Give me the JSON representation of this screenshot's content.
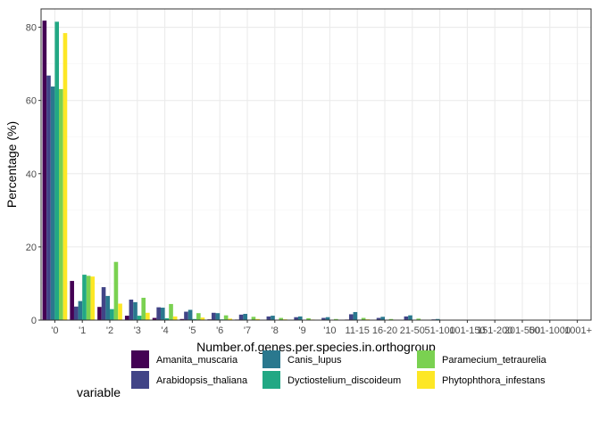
{
  "chart_data": {
    "type": "bar",
    "xlabel": "Number.of.genes.per.species.in.orthogroup",
    "ylabel": "Percentage (%)",
    "ylim": [
      0,
      85
    ],
    "yticks": [
      0,
      20,
      40,
      60,
      80
    ],
    "grid": true,
    "legend_title": "variable",
    "legend_position": "bottom",
    "categories": [
      "'0",
      "'1",
      "'2",
      "'3",
      "'4",
      "'5",
      "'6",
      "'7",
      "'8",
      "'9",
      "'10",
      "11-15",
      "16-20",
      "21-50",
      "51-100",
      "101-150",
      "151-200",
      "201-500",
      "501-1000",
      "'1001+"
    ],
    "series": [
      {
        "name": "Amanita_muscaria",
        "color": "#440154",
        "values": [
          81.8,
          10.7,
          3.6,
          1.2,
          0.6,
          0.3,
          0.2,
          0.15,
          0.1,
          0.08,
          0.06,
          0.15,
          0.05,
          0.05,
          0.01,
          0,
          0,
          0,
          0,
          0
        ]
      },
      {
        "name": "Arabidopsis_thaliana",
        "color": "#414487",
        "values": [
          66.8,
          3.7,
          9.0,
          5.6,
          3.5,
          2.3,
          2.0,
          1.5,
          1.0,
          0.8,
          0.6,
          1.6,
          0.6,
          1.0,
          0.2,
          0.05,
          0.02,
          0.02,
          0,
          0
        ]
      },
      {
        "name": "Canis_lupus",
        "color": "#2A788E",
        "values": [
          63.8,
          5.2,
          6.6,
          4.9,
          3.4,
          2.8,
          1.9,
          1.7,
          1.2,
          1.0,
          0.8,
          2.2,
          0.9,
          1.3,
          0.3,
          0.05,
          0.03,
          0.02,
          0,
          0
        ]
      },
      {
        "name": "Dyctiostelium_discoideum",
        "color": "#22A884",
        "values": [
          81.5,
          12.4,
          3.0,
          1.2,
          0.5,
          0.3,
          0.2,
          0.1,
          0.08,
          0.05,
          0.05,
          0.1,
          0.05,
          0.05,
          0.01,
          0,
          0,
          0,
          0,
          0
        ]
      },
      {
        "name": "Paramecium_tetraurelia",
        "color": "#7AD151",
        "values": [
          63.1,
          12.1,
          15.9,
          6.1,
          4.4,
          1.9,
          1.3,
          0.9,
          0.6,
          0.5,
          0.3,
          0.6,
          0.3,
          0.4,
          0.1,
          0.02,
          0.01,
          0.01,
          0,
          0
        ]
      },
      {
        "name": "Phytophthora_infestans",
        "color": "#FDE725",
        "values": [
          78.4,
          11.9,
          4.5,
          2.0,
          1.0,
          0.7,
          0.4,
          0.3,
          0.2,
          0.15,
          0.1,
          0.2,
          0.1,
          0.1,
          0.02,
          0,
          0,
          0,
          0,
          0
        ]
      }
    ]
  }
}
